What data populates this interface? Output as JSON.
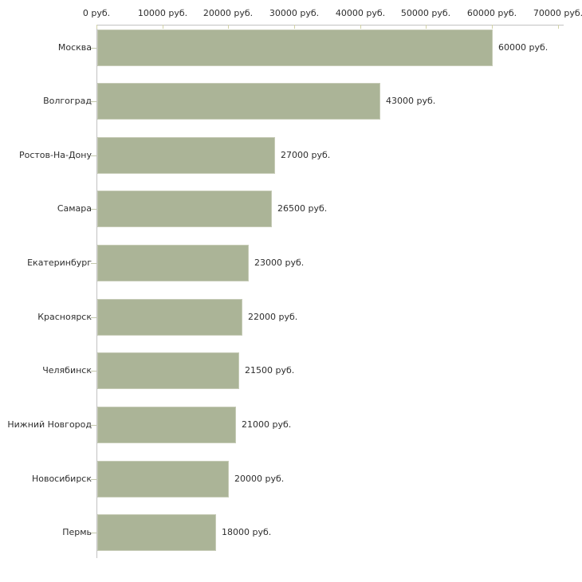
{
  "chart_data": {
    "type": "bar",
    "orientation": "horizontal",
    "title": "",
    "xlabel": "",
    "ylabel": "",
    "unit": "руб.",
    "categories": [
      "Москва",
      "Волгоград",
      "Ростов-На-Дону",
      "Самара",
      "Екатеринбург",
      "Красноярск",
      "Челябинск",
      "Нижний Новгород",
      "Новосибирск",
      "Пермь"
    ],
    "values": [
      60000,
      43000,
      27000,
      26500,
      23000,
      22000,
      21500,
      21000,
      20000,
      18000
    ],
    "value_labels": [
      "60000 руб.",
      "43000 руб.",
      "27000 руб.",
      "26500 руб.",
      "23000 руб.",
      "22000 руб.",
      "21500 руб.",
      "21000 руб.",
      "20000 руб.",
      "18000 руб."
    ],
    "x_ticks": [
      0,
      10000,
      20000,
      30000,
      40000,
      50000,
      60000,
      70000
    ],
    "x_tick_labels": [
      "0 руб.",
      "10000 руб.",
      "20000 руб.",
      "30000 руб.",
      "40000 руб.",
      "50000 руб.",
      "60000 руб.",
      "70000 руб."
    ],
    "xlim": [
      0,
      70000
    ],
    "grid": false,
    "legend": false,
    "axis_position": "top",
    "colors": {
      "bar_fill": "#abb497",
      "bar_border": "#c6cbb6",
      "axis_line": "#c2c2c2",
      "tick_mark": "#d2d2a6",
      "category_tick": "#c3c8ac",
      "text": "#2e2e2e",
      "background": "#ffffff"
    }
  }
}
